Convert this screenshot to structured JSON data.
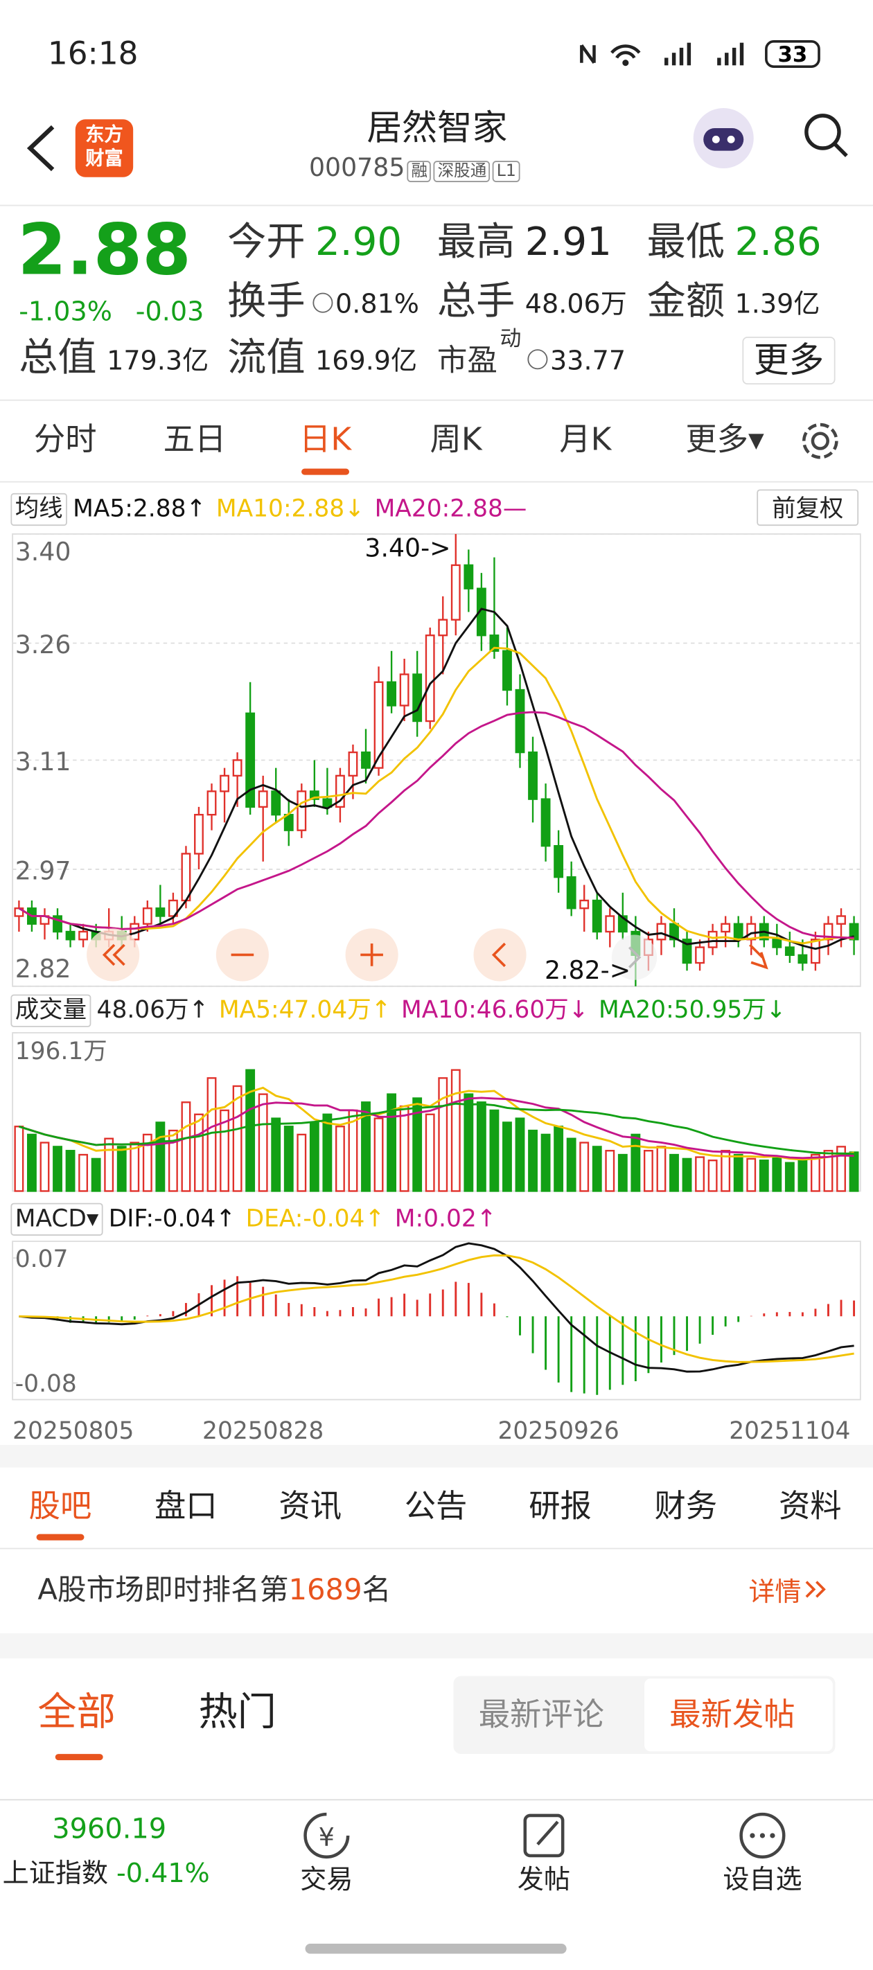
{
  "status": {
    "time": "16:18",
    "battery": "33"
  },
  "header": {
    "logo_top": "东方",
    "logo_bottom": "财富",
    "name": "居然智家",
    "code": "000785",
    "tags": [
      "融",
      "深股通",
      "L1"
    ]
  },
  "quote": {
    "price": "2.88",
    "change_pct": "-1.03%",
    "change": "-0.03",
    "fields": [
      {
        "label": "今开",
        "value": "2.90",
        "color": "#14a01a"
      },
      {
        "label": "最高",
        "value": "2.91",
        "color": "#222222"
      },
      {
        "label": "最低",
        "value": "2.86",
        "color": "#14a01a"
      },
      {
        "label": "换手",
        "value": "0.81%",
        "color": "#222222"
      },
      {
        "label": "总手",
        "value": "48.06万",
        "color": "#222222"
      },
      {
        "label": "金额",
        "value": "1.39亿",
        "color": "#222222"
      },
      {
        "label": "总值",
        "value": "179.3亿",
        "color": "#222222"
      },
      {
        "label": "流值",
        "value": "169.9亿",
        "color": "#222222"
      },
      {
        "label": "市盈",
        "sup": "动",
        "value": "33.77",
        "color": "#222222"
      }
    ],
    "more": "更多"
  },
  "tabs": {
    "items": [
      "分时",
      "五日",
      "日K",
      "周K",
      "月K",
      "更多▾"
    ],
    "active": 2
  },
  "ma_legend": {
    "menu": "均线",
    "ma5": "MA5:2.88↑",
    "ma10": "MA10:2.88↓",
    "ma20": "MA20:2.88—",
    "adjust": "前复权"
  },
  "kline": {
    "type": "candlestick",
    "up_color": "#e0302a",
    "down_color": "#12a015",
    "ma_colors": [
      "#111111",
      "#f2c200",
      "#c4168a"
    ],
    "ylim": [
      2.82,
      3.4
    ],
    "yticks": [
      {
        "value": 3.4,
        "label": "3.40"
      },
      3.26,
      3.11,
      2.97,
      2.82
    ],
    "annotations": [
      {
        "text": "3.40->",
        "index": 34
      },
      {
        "text": "2.82->",
        "index": 48
      }
    ],
    "dates": [
      "20250805",
      null,
      null,
      null,
      null,
      null,
      null,
      null,
      null,
      null,
      null,
      null,
      null,
      null,
      null,
      null,
      null,
      null,
      null,
      "20250828",
      null,
      null,
      null,
      null,
      null,
      null,
      null,
      null,
      null,
      null,
      null,
      null,
      null,
      null,
      null,
      null,
      null,
      null,
      null,
      null,
      null,
      null,
      "20250926",
      null,
      null,
      null,
      null,
      null,
      null,
      null,
      null,
      null,
      null,
      null,
      null,
      null,
      null,
      null,
      null,
      null,
      "20251104",
      null,
      null,
      null,
      null,
      null
    ],
    "candles": [
      [
        2.91,
        2.93,
        2.89,
        2.92
      ],
      [
        2.92,
        2.93,
        2.89,
        2.9
      ],
      [
        2.9,
        2.92,
        2.88,
        2.91
      ],
      [
        2.91,
        2.92,
        2.88,
        2.89
      ],
      [
        2.89,
        2.9,
        2.87,
        2.88
      ],
      [
        2.88,
        2.9,
        2.87,
        2.89
      ],
      [
        2.89,
        2.9,
        2.87,
        2.88
      ],
      [
        2.88,
        2.92,
        2.87,
        2.89
      ],
      [
        2.89,
        2.91,
        2.87,
        2.88
      ],
      [
        2.88,
        2.91,
        2.87,
        2.9
      ],
      [
        2.9,
        2.93,
        2.89,
        2.92
      ],
      [
        2.92,
        2.95,
        2.9,
        2.91
      ],
      [
        2.91,
        2.94,
        2.9,
        2.93
      ],
      [
        2.93,
        3.0,
        2.92,
        2.99
      ],
      [
        2.99,
        3.05,
        2.97,
        3.04
      ],
      [
        3.04,
        3.08,
        3.02,
        3.07
      ],
      [
        3.07,
        3.1,
        3.03,
        3.09
      ],
      [
        3.09,
        3.12,
        3.05,
        3.11
      ],
      [
        3.17,
        3.21,
        3.04,
        3.05
      ],
      [
        3.05,
        3.09,
        2.98,
        3.07
      ],
      [
        3.07,
        3.1,
        3.03,
        3.04
      ],
      [
        3.04,
        3.06,
        3.0,
        3.02
      ],
      [
        3.02,
        3.08,
        3.01,
        3.07
      ],
      [
        3.07,
        3.11,
        3.05,
        3.06
      ],
      [
        3.06,
        3.1,
        3.04,
        3.05
      ],
      [
        3.05,
        3.1,
        3.03,
        3.09
      ],
      [
        3.09,
        3.13,
        3.06,
        3.12
      ],
      [
        3.12,
        3.15,
        3.08,
        3.1
      ],
      [
        3.1,
        3.23,
        3.09,
        3.21
      ],
      [
        3.21,
        3.25,
        3.17,
        3.18
      ],
      [
        3.18,
        3.24,
        3.16,
        3.22
      ],
      [
        3.22,
        3.25,
        3.14,
        3.16
      ],
      [
        3.16,
        3.28,
        3.15,
        3.27
      ],
      [
        3.27,
        3.32,
        3.22,
        3.29
      ],
      [
        3.29,
        3.4,
        3.27,
        3.36
      ],
      [
        3.36,
        3.38,
        3.3,
        3.33
      ],
      [
        3.33,
        3.35,
        3.25,
        3.27
      ],
      [
        3.27,
        3.37,
        3.24,
        3.25
      ],
      [
        3.25,
        3.28,
        3.18,
        3.2
      ],
      [
        3.2,
        3.22,
        3.1,
        3.12
      ],
      [
        3.12,
        3.14,
        3.03,
        3.06
      ],
      [
        3.06,
        3.08,
        2.98,
        3.0
      ],
      [
        3.0,
        3.02,
        2.94,
        2.96
      ],
      [
        2.96,
        2.98,
        2.91,
        2.92
      ],
      [
        2.92,
        2.95,
        2.89,
        2.93
      ],
      [
        2.93,
        2.94,
        2.88,
        2.89
      ],
      [
        2.89,
        2.92,
        2.87,
        2.91
      ],
      [
        2.91,
        2.94,
        2.88,
        2.89
      ],
      [
        2.89,
        2.91,
        2.82,
        2.86
      ],
      [
        2.86,
        2.89,
        2.84,
        2.88
      ],
      [
        2.88,
        2.91,
        2.86,
        2.9
      ],
      [
        2.9,
        2.92,
        2.87,
        2.88
      ],
      [
        2.88,
        2.89,
        2.84,
        2.85
      ],
      [
        2.85,
        2.88,
        2.84,
        2.87
      ],
      [
        2.87,
        2.9,
        2.86,
        2.89
      ],
      [
        2.89,
        2.91,
        2.87,
        2.9
      ],
      [
        2.9,
        2.91,
        2.87,
        2.88
      ],
      [
        2.88,
        2.91,
        2.86,
        2.9
      ],
      [
        2.9,
        2.91,
        2.87,
        2.88
      ],
      [
        2.88,
        2.9,
        2.86,
        2.87
      ],
      [
        2.87,
        2.89,
        2.85,
        2.86
      ],
      [
        2.86,
        2.88,
        2.84,
        2.85
      ],
      [
        2.85,
        2.89,
        2.84,
        2.88
      ],
      [
        2.88,
        2.91,
        2.86,
        2.9
      ],
      [
        2.9,
        2.92,
        2.87,
        2.91
      ],
      [
        2.9,
        2.91,
        2.86,
        2.88
      ]
    ],
    "volume": {
      "ylim": [
        0,
        196.1
      ],
      "yticks": [
        {
          "value": 196.1,
          "label": "196.1万"
        }
      ],
      "ma_colors": [
        "#f2c200",
        "#c4168a",
        "#12a015"
      ],
      "values": [
        80,
        70,
        60,
        55,
        50,
        45,
        40,
        65,
        55,
        60,
        70,
        85,
        75,
        110,
        95,
        140,
        100,
        130,
        150,
        120,
        90,
        80,
        70,
        85,
        95,
        80,
        100,
        110,
        90,
        120,
        105,
        115,
        95,
        140,
        150,
        120,
        110,
        100,
        85,
        90,
        75,
        70,
        80,
        65,
        60,
        55,
        50,
        45,
        70,
        50,
        55,
        45,
        40,
        42,
        38,
        50,
        45,
        40,
        38,
        42,
        35,
        40,
        45,
        50,
        55,
        48.06
      ]
    },
    "macd": {
      "ylim": [
        -0.1,
        0.09
      ],
      "yticks": [
        0.07,
        -0.08
      ],
      "colors": [
        "#111111",
        "#f2c200"
      ]
    }
  },
  "vol_legend": {
    "menu": "成交量",
    "vol": "48.06万↑",
    "ma5": "MA5:47.04万↑",
    "ma10": "MA10:46.60万↓",
    "ma20": "MA20:50.95万↓"
  },
  "macd_legend": {
    "menu": "MACD▾",
    "dif": "DIF:-0.04↑",
    "dea": "DEA:-0.04↑",
    "m": "M:0.02↑"
  },
  "bottom_tabs": {
    "items": [
      "股吧",
      "盘口",
      "资讯",
      "公告",
      "研报",
      "财务",
      "资料"
    ],
    "active": 0
  },
  "rank": {
    "prefix": "A股市场即时排名第",
    "number": "1689",
    "suffix": "名",
    "detail": "详情"
  },
  "filter": {
    "all": "全部",
    "hot": "热门",
    "latest_comment": "最新评论",
    "latest_post": "最新发帖"
  },
  "footer": {
    "index_value": "3960.19",
    "index_name": "上证指数",
    "index_change": "-0.41%",
    "trade": "交易",
    "post": "发帖",
    "watch": "设自选"
  }
}
